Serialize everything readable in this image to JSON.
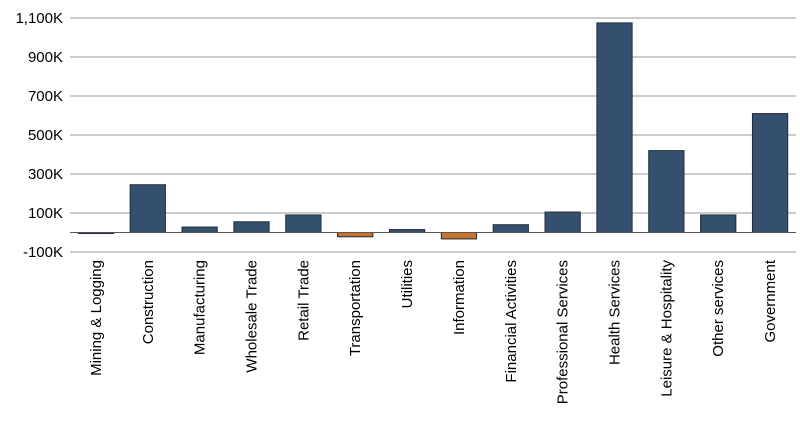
{
  "chart_data": {
    "type": "bar",
    "title": "",
    "xlabel": "",
    "ylabel": "",
    "categories": [
      "Mining & Logging",
      "Construction",
      "Manufacturing",
      "Wholesale Trade",
      "Retail Trade",
      "Transportation",
      "Utilities",
      "Information",
      "Financial Activities",
      "Professional Services",
      "Health Services",
      "Leisure & Hospitality",
      "Other services",
      "Government"
    ],
    "values": [
      -5000,
      245000,
      28000,
      55000,
      90000,
      -22000,
      15000,
      -33000,
      40000,
      105000,
      1075000,
      420000,
      90000,
      610000
    ],
    "ylim": [
      -100000,
      1100000
    ],
    "yticks": [
      -100000,
      100000,
      300000,
      500000,
      700000,
      900000,
      1100000
    ],
    "ytick_labels": [
      "-100K",
      "100K",
      "300K",
      "500K",
      "700K",
      "900K",
      "1,100K"
    ],
    "grid": true,
    "legend": "none",
    "colors": {
      "positive": "#34506e",
      "negative": "#c8732d",
      "grid": "#9a9a9a",
      "text": "#000000"
    }
  }
}
